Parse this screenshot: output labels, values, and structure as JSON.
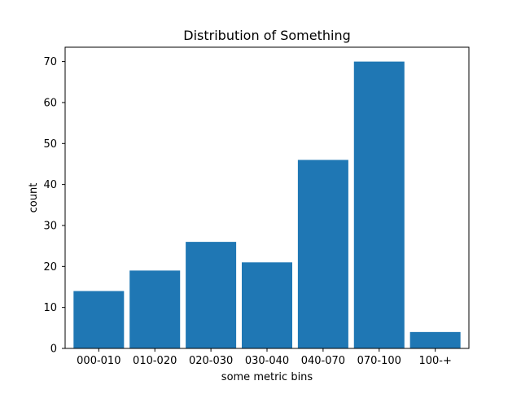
{
  "chart_data": {
    "type": "bar",
    "title": "Distribution of Something",
    "xlabel": "some metric bins",
    "ylabel": "count",
    "categories": [
      "000-010",
      "010-020",
      "020-030",
      "030-040",
      "040-070",
      "070-100",
      "100-+"
    ],
    "values": [
      14,
      19,
      26,
      21,
      46,
      70,
      4
    ],
    "ylim": [
      0,
      73.5
    ],
    "yticks": [
      0,
      10,
      20,
      30,
      40,
      50,
      60,
      70
    ],
    "grid": false,
    "legend": "none",
    "bar_color": "#1f77b4"
  }
}
